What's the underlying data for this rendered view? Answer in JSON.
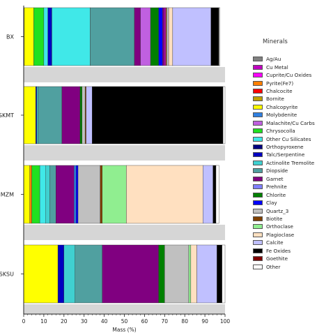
{
  "chart_data": {
    "type": "bar",
    "orientation": "horizontal",
    "stacked": true,
    "xlabel": "Mass (%)",
    "xlim": [
      0,
      100
    ],
    "xticks": [
      0,
      10,
      20,
      30,
      40,
      50,
      60,
      70,
      80,
      90,
      100
    ],
    "legend_title": "Minerals",
    "legend_position": "right",
    "categories": [
      "BX",
      "SKMT",
      "MZM",
      "SKSU"
    ],
    "minerals": [
      {
        "name": "Ag/Au",
        "color": "#808080"
      },
      {
        "name": "Cu Metal",
        "color": "#c000c0"
      },
      {
        "name": "Cuprite/Cu Oxides",
        "color": "#ff00ff"
      },
      {
        "name": "Pyrite(Fe7)",
        "color": "#ff8000"
      },
      {
        "name": "Chalcocite",
        "color": "#ff0000"
      },
      {
        "name": "Bornite",
        "color": "#c0a000"
      },
      {
        "name": "Chalcopyrite",
        "color": "#ffff00"
      },
      {
        "name": "Molybdenite",
        "color": "#3080e0"
      },
      {
        "name": "Malachite/Cu Carbs",
        "color": "#c060e0"
      },
      {
        "name": "Chrysocolla",
        "color": "#20e020"
      },
      {
        "name": "Other Cu Silicates",
        "color": "#40e8e8"
      },
      {
        "name": "Orthopyroxene",
        "color": "#000080"
      },
      {
        "name": "Talc/Serpentine",
        "color": "#0000c0"
      },
      {
        "name": "Actinolite Tremolite",
        "color": "#40d0d0"
      },
      {
        "name": "Diopside",
        "color": "#50a0a0"
      },
      {
        "name": "Garnet",
        "color": "#800080"
      },
      {
        "name": "Prehnite",
        "color": "#8080ff"
      },
      {
        "name": "Chlorite",
        "color": "#008000"
      },
      {
        "name": "Clay",
        "color": "#0000ff"
      },
      {
        "name": "Quartz_3",
        "color": "#c0c0c0"
      },
      {
        "name": "Biotite",
        "color": "#804000"
      },
      {
        "name": "Orthoclase",
        "color": "#90ee90"
      },
      {
        "name": "Plagioclase",
        "color": "#ffe0c0"
      },
      {
        "name": "Calcite",
        "color": "#c0c0ff"
      },
      {
        "name": "Fe Oxides",
        "color": "#000000"
      },
      {
        "name": "Goethite",
        "color": "#800000"
      },
      {
        "name": "Other",
        "color": "#ffffff"
      }
    ],
    "series_values": {
      "BX": {
        "Ag/Au": 0.2,
        "Chalcocite": 0.3,
        "Bornite": 0.3,
        "Chalcopyrite": 5,
        "Chrysocolla": 5,
        "Other Cu Silicates": 2,
        "Talc/Serpentine": 2,
        "Actinolite Tremolite": 19,
        "Diopside": 22,
        "Garnet": 3,
        "Malachite/Cu Carbs": 5,
        "Chlorite": 4,
        "Clay": 2,
        "Cuprite/Cu Oxides": 0.5,
        "Quartz_3": 1,
        "Biotite": 1,
        "Chalcocite_2": 0,
        "Plagioclase": 2,
        "Calcite": 19,
        "Fe Oxides": 4
      },
      "SKMT": {
        "Chalcopyrite": 6,
        "Talc/Serpentine": 1,
        "Diopside": 12,
        "Garnet": 9,
        "Chlorite": 1,
        "Quartz_3": 1.5,
        "Biotite": 0.5,
        "Calcite": 3,
        "Fe Oxides": 65
      },
      "MZM": {
        "Chalcopyrite": 3,
        "Pyrite(Fe7)": 1,
        "Chrysocolla": 4,
        "Other Cu Silicates": 3,
        "Actinolite Tremolite": 2,
        "Diopside": 3,
        "Garnet": 10,
        "Molybdenite": 0.5,
        "Clay": 1,
        "Quartz_3": 10.5,
        "Biotite": 1,
        "Orthoclase": 13,
        "Plagioclase": 38,
        "Calcite": 5,
        "Fe Oxides": 2
      },
      "SKSU": {
        "Chalcopyrite": 17,
        "Talc/Serpentine": 3,
        "Actinolite Tremolite": 6,
        "Diopside": 13,
        "Garnet": 28,
        "Chlorite": 3,
        "Quartz_3": 12,
        "Orthoclase": 1,
        "Plagioclase": 3,
        "Calcite": 10,
        "Fe Oxides": 3
      }
    },
    "bars": [
      {
        "category": "BX",
        "segments": [
          {
            "mineral": "Ag/Au",
            "value": 0.3
          },
          {
            "mineral": "Chalcopyrite",
            "value": 4.7
          },
          {
            "mineral": "Chrysocolla",
            "value": 5
          },
          {
            "mineral": "Other Cu Silicates",
            "value": 2
          },
          {
            "mineral": "Talc/Serpentine",
            "value": 2
          },
          {
            "mineral": "Other Cu Silicates",
            "value": 19
          },
          {
            "mineral": "Diopside",
            "value": 22
          },
          {
            "mineral": "Garnet",
            "value": 3
          },
          {
            "mineral": "Malachite/Cu Carbs",
            "value": 5
          },
          {
            "mineral": "Chlorite",
            "value": 4
          },
          {
            "mineral": "Clay",
            "value": 2
          },
          {
            "mineral": "Garnet",
            "value": 1
          },
          {
            "mineral": "Cuprite/Cu Oxides",
            "value": 0.5
          },
          {
            "mineral": "Biotite",
            "value": 0.5
          },
          {
            "mineral": "Quartz_3",
            "value": 1
          },
          {
            "mineral": "Plagioclase",
            "value": 2
          },
          {
            "mineral": "Calcite",
            "value": 19
          },
          {
            "mineral": "Fe Oxides",
            "value": 4
          },
          {
            "mineral": "Other",
            "value": 0.5
          }
        ]
      },
      {
        "category": "SKMT",
        "segments": [
          {
            "mineral": "Chalcopyrite",
            "value": 6
          },
          {
            "mineral": "Talc/Serpentine",
            "value": 0.5
          },
          {
            "mineral": "Actinolite Tremolite",
            "value": 0.5
          },
          {
            "mineral": "Diopside",
            "value": 12
          },
          {
            "mineral": "Garnet",
            "value": 9
          },
          {
            "mineral": "Chlorite",
            "value": 1
          },
          {
            "mineral": "Quartz_3",
            "value": 1.5
          },
          {
            "mineral": "Biotite",
            "value": 0.5
          },
          {
            "mineral": "Calcite",
            "value": 3
          },
          {
            "mineral": "Fe Oxides",
            "value": 65
          },
          {
            "mineral": "Other",
            "value": 1
          }
        ]
      },
      {
        "category": "MZM",
        "segments": [
          {
            "mineral": "Chalcopyrite",
            "value": 3
          },
          {
            "mineral": "Pyrite(Fe7)",
            "value": 1
          },
          {
            "mineral": "Chrysocolla",
            "value": 4
          },
          {
            "mineral": "Other Cu Silicates",
            "value": 3
          },
          {
            "mineral": "Actinolite Tremolite",
            "value": 2
          },
          {
            "mineral": "Diopside",
            "value": 3
          },
          {
            "mineral": "Garnet",
            "value": 9
          },
          {
            "mineral": "Molybdenite",
            "value": 1
          },
          {
            "mineral": "Clay",
            "value": 1
          },
          {
            "mineral": "Quartz_3",
            "value": 11
          },
          {
            "mineral": "Biotite",
            "value": 1
          },
          {
            "mineral": "Orthoclase",
            "value": 12
          },
          {
            "mineral": "Plagioclase",
            "value": 38
          },
          {
            "mineral": "Calcite",
            "value": 5
          },
          {
            "mineral": "Fe Oxides",
            "value": 1.5
          },
          {
            "mineral": "Other",
            "value": 1.5
          }
        ]
      },
      {
        "category": "SKSU",
        "segments": [
          {
            "mineral": "Chalcopyrite",
            "value": 17
          },
          {
            "mineral": "Talc/Serpentine",
            "value": 3
          },
          {
            "mineral": "Actinolite Tremolite",
            "value": 5.5
          },
          {
            "mineral": "Diopside",
            "value": 13.5
          },
          {
            "mineral": "Garnet",
            "value": 28
          },
          {
            "mineral": "Chlorite",
            "value": 3
          },
          {
            "mineral": "Quartz_3",
            "value": 12
          },
          {
            "mineral": "Orthoclase",
            "value": 1
          },
          {
            "mineral": "Plagioclase",
            "value": 3
          },
          {
            "mineral": "Calcite",
            "value": 10
          },
          {
            "mineral": "Fe Oxides",
            "value": 2.5
          },
          {
            "mineral": "Other",
            "value": 1.5
          }
        ]
      }
    ]
  }
}
